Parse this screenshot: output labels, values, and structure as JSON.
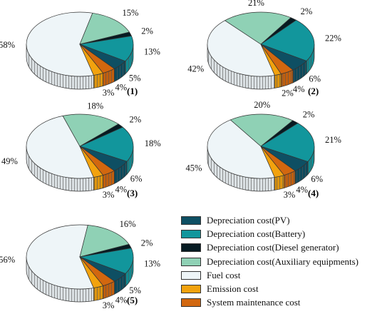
{
  "chart_data": {
    "type": "pie",
    "style": "3d",
    "legend_position": "bottom-right",
    "categories": [
      "Depreciation cost(PV)",
      "Depreciation cost(Battery)",
      "Depreciation cost(Diesel generator)",
      "Depreciation cost(Auxiliary equipments)",
      "Fuel cost",
      "Emission cost",
      "System maintenance cost"
    ],
    "colors": [
      "#0e4f63",
      "#12969c",
      "#061b22",
      "#8fd1b5",
      "#eef5f8",
      "#f2a20e",
      "#d2670f"
    ],
    "pies": [
      {
        "label": "(1)",
        "values": [
          5,
          13,
          2,
          15,
          58,
          3,
          4
        ],
        "value_labels": [
          "5%",
          "13%",
          "2%",
          "15%",
          "58%",
          "3%",
          "4%"
        ]
      },
      {
        "label": "(2)",
        "values": [
          6,
          22,
          2,
          21,
          42,
          2,
          4
        ],
        "value_labels": [
          "6%",
          "22%",
          "2%",
          "21%",
          "42%",
          "2%",
          "4%"
        ]
      },
      {
        "label": "(3)",
        "values": [
          6,
          18,
          2,
          18,
          49,
          3,
          4
        ],
        "value_labels": [
          "6%",
          "18%",
          "2%",
          "18%",
          "49%",
          "3%",
          "4%"
        ]
      },
      {
        "label": "(4)",
        "values": [
          6,
          21,
          2,
          20,
          45,
          3,
          4
        ],
        "value_labels": [
          "6%",
          "21%",
          "2%",
          "20%",
          "45%",
          "3%",
          "4%"
        ]
      },
      {
        "label": "(5)",
        "values": [
          5,
          13,
          2,
          16,
          56,
          3,
          4
        ],
        "value_labels": [
          "5%",
          "13%",
          "2%",
          "16%",
          "56%",
          "3%",
          "4%"
        ]
      }
    ]
  }
}
